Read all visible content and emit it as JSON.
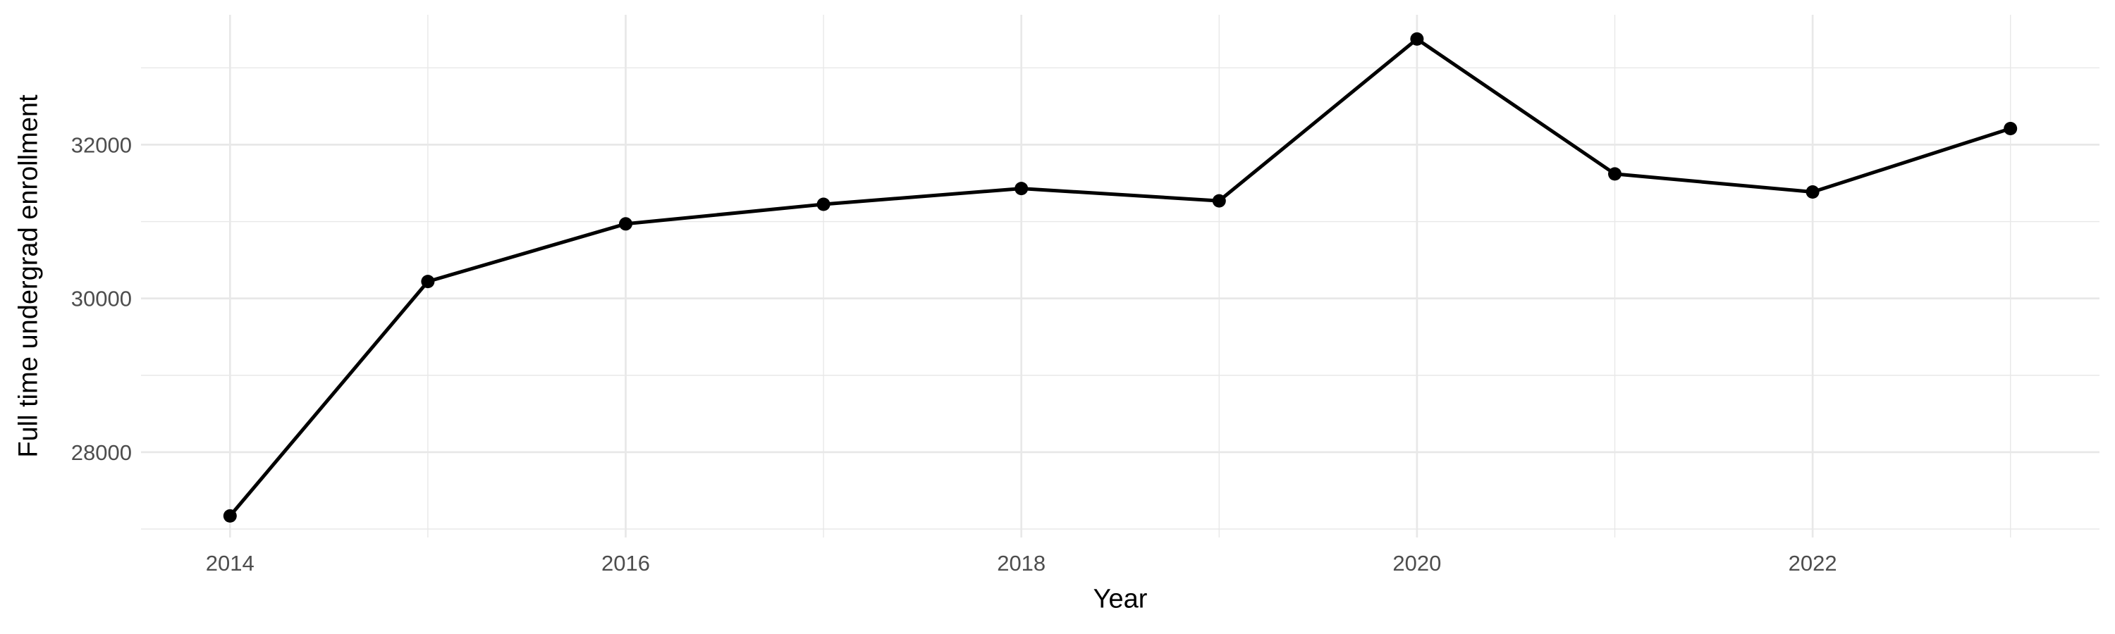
{
  "figure": {
    "background": "#FFFFFF"
  },
  "chart_data": {
    "type": "line",
    "title": "",
    "xlabel": "Year",
    "ylabel": "Full time undergrad enrollment",
    "series": [
      {
        "name": "Full time undergrad enrollment",
        "x": [
          2014,
          2015,
          2016,
          2017,
          2018,
          2019,
          2020,
          2021,
          2022,
          2023
        ],
        "values": [
          27170,
          30220,
          30970,
          31225,
          31430,
          31270,
          33375,
          31620,
          31385,
          32210
        ]
      }
    ],
    "xlim": [
      2013.55,
      2023.45
    ],
    "ylim": [
      26890,
      33690
    ],
    "x_major_ticks": [
      2014,
      2016,
      2018,
      2020,
      2022
    ],
    "x_tick_labels": [
      "2014",
      "2016",
      "2018",
      "2020",
      "2022"
    ],
    "x_minor_gridlines": [
      2015,
      2017,
      2019,
      2021,
      2023
    ],
    "y_major_ticks": [
      28000,
      30000,
      32000
    ],
    "y_tick_labels": [
      "28000",
      "30000",
      "32000"
    ],
    "y_minor_gridlines": [
      27000,
      29000,
      31000,
      33000
    ],
    "grid": "major+minor",
    "legend": "none",
    "marker": "filled-circle",
    "colors": {
      "line": "#000000",
      "point": "#000000",
      "grid_major": "#E8E8E8",
      "grid_minor": "#E8E8E8",
      "tick_label": "#4D4D4D",
      "axis_title": "#000000",
      "background": "#FFFFFF"
    }
  }
}
